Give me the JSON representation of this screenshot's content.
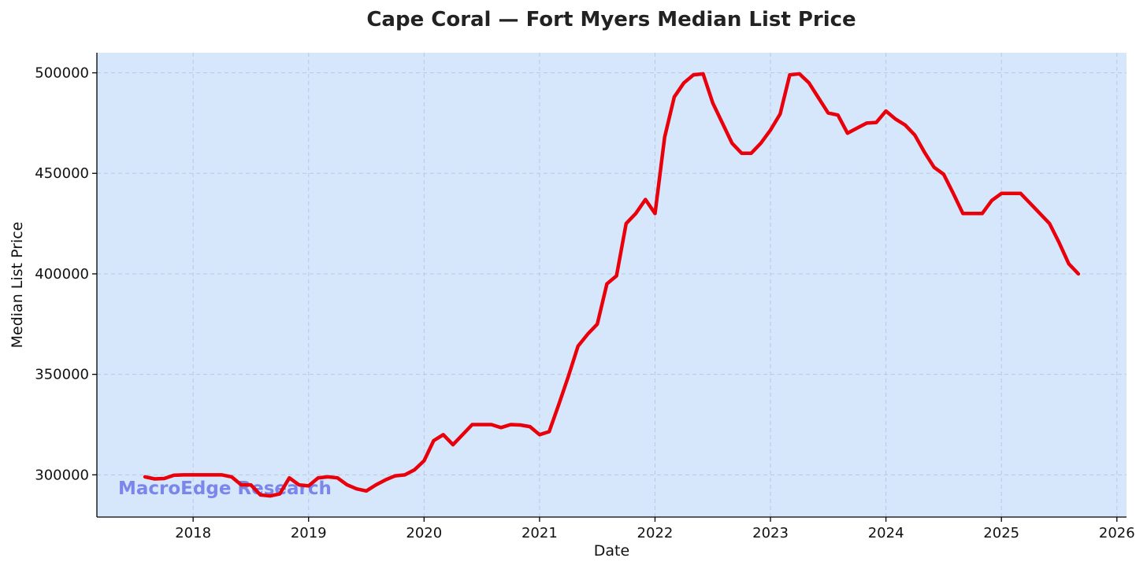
{
  "chart_data": {
    "type": "line",
    "title": "Cape Coral — Fort Myers Median List Price",
    "xlabel": "Date",
    "ylabel": "Median List Price",
    "watermark": "MacroEdge Research",
    "x_ticks": [
      "2018",
      "2019",
      "2020",
      "2021",
      "2022",
      "2023",
      "2024",
      "2025",
      "2026"
    ],
    "y_ticks": [
      "300000",
      "350000",
      "400000",
      "450000",
      "500000"
    ],
    "xlim": [
      "2017-03",
      "2026-02"
    ],
    "ylim": [
      279000,
      510000
    ],
    "grid": true,
    "colors": {
      "plot_background": "#d6e6fb",
      "line": "#e8000b",
      "watermark": "#7b86ea"
    },
    "series": [
      {
        "x": [
          "2017-08",
          "2017-09",
          "2017-10",
          "2017-11",
          "2017-12",
          "2018-01",
          "2018-02",
          "2018-03",
          "2018-04",
          "2018-05",
          "2018-06",
          "2018-07",
          "2018-08",
          "2018-09",
          "2018-10",
          "2018-11",
          "2018-12",
          "2019-01",
          "2019-02",
          "2019-03",
          "2019-04",
          "2019-05",
          "2019-06",
          "2019-07",
          "2019-08",
          "2019-09",
          "2019-10",
          "2019-11",
          "2019-12",
          "2020-01",
          "2020-02",
          "2020-03",
          "2020-04",
          "2020-05",
          "2020-06",
          "2020-07",
          "2020-08",
          "2020-09",
          "2020-10",
          "2020-11",
          "2020-12",
          "2021-01",
          "2021-02",
          "2021-03",
          "2021-04",
          "2021-05",
          "2021-06",
          "2021-07",
          "2021-08",
          "2021-09",
          "2021-10",
          "2021-11",
          "2021-12",
          "2022-01",
          "2022-02",
          "2022-03",
          "2022-04",
          "2022-05",
          "2022-06",
          "2022-07",
          "2022-08",
          "2022-09",
          "2022-10",
          "2022-11",
          "2022-12",
          "2023-01",
          "2023-02",
          "2023-03",
          "2023-04",
          "2023-05",
          "2023-06",
          "2023-07",
          "2023-08",
          "2023-09",
          "2023-10",
          "2023-11",
          "2023-12",
          "2024-01",
          "2024-02",
          "2024-03",
          "2024-04",
          "2024-05",
          "2024-06",
          "2024-07",
          "2024-08",
          "2024-09",
          "2024-10",
          "2024-11",
          "2024-12",
          "2025-01",
          "2025-02",
          "2025-03",
          "2025-04",
          "2025-05",
          "2025-06",
          "2025-07",
          "2025-08",
          "2025-09"
        ],
        "values": [
          299000,
          298000,
          298200,
          299800,
          300000,
          300000,
          300000,
          300000,
          300000,
          299000,
          295000,
          295000,
          290000,
          289500,
          290500,
          298500,
          295000,
          294500,
          298500,
          299000,
          298500,
          295000,
          293000,
          292000,
          295000,
          297500,
          299500,
          300000,
          302500,
          307000,
          317000,
          320000,
          315000,
          320000,
          325000,
          325000,
          325000,
          323500,
          325000,
          324800,
          324000,
          320000,
          321500,
          335000,
          349000,
          364000,
          370000,
          375000,
          395000,
          399000,
          425000,
          430000,
          437000,
          430000,
          468000,
          488000,
          495000,
          499000,
          499500,
          485000,
          475000,
          465000,
          460000,
          460000,
          465000,
          471500,
          479500,
          499000,
          499500,
          495000,
          487500,
          480000,
          479000,
          470000,
          472500,
          475000,
          475300,
          481000,
          477000,
          474000,
          469000,
          460500,
          453000,
          449500,
          440000,
          430000,
          430000,
          430000,
          436500,
          440000,
          440000,
          440000,
          435000,
          430000,
          425000,
          415500,
          405000,
          400000
        ]
      }
    ]
  }
}
